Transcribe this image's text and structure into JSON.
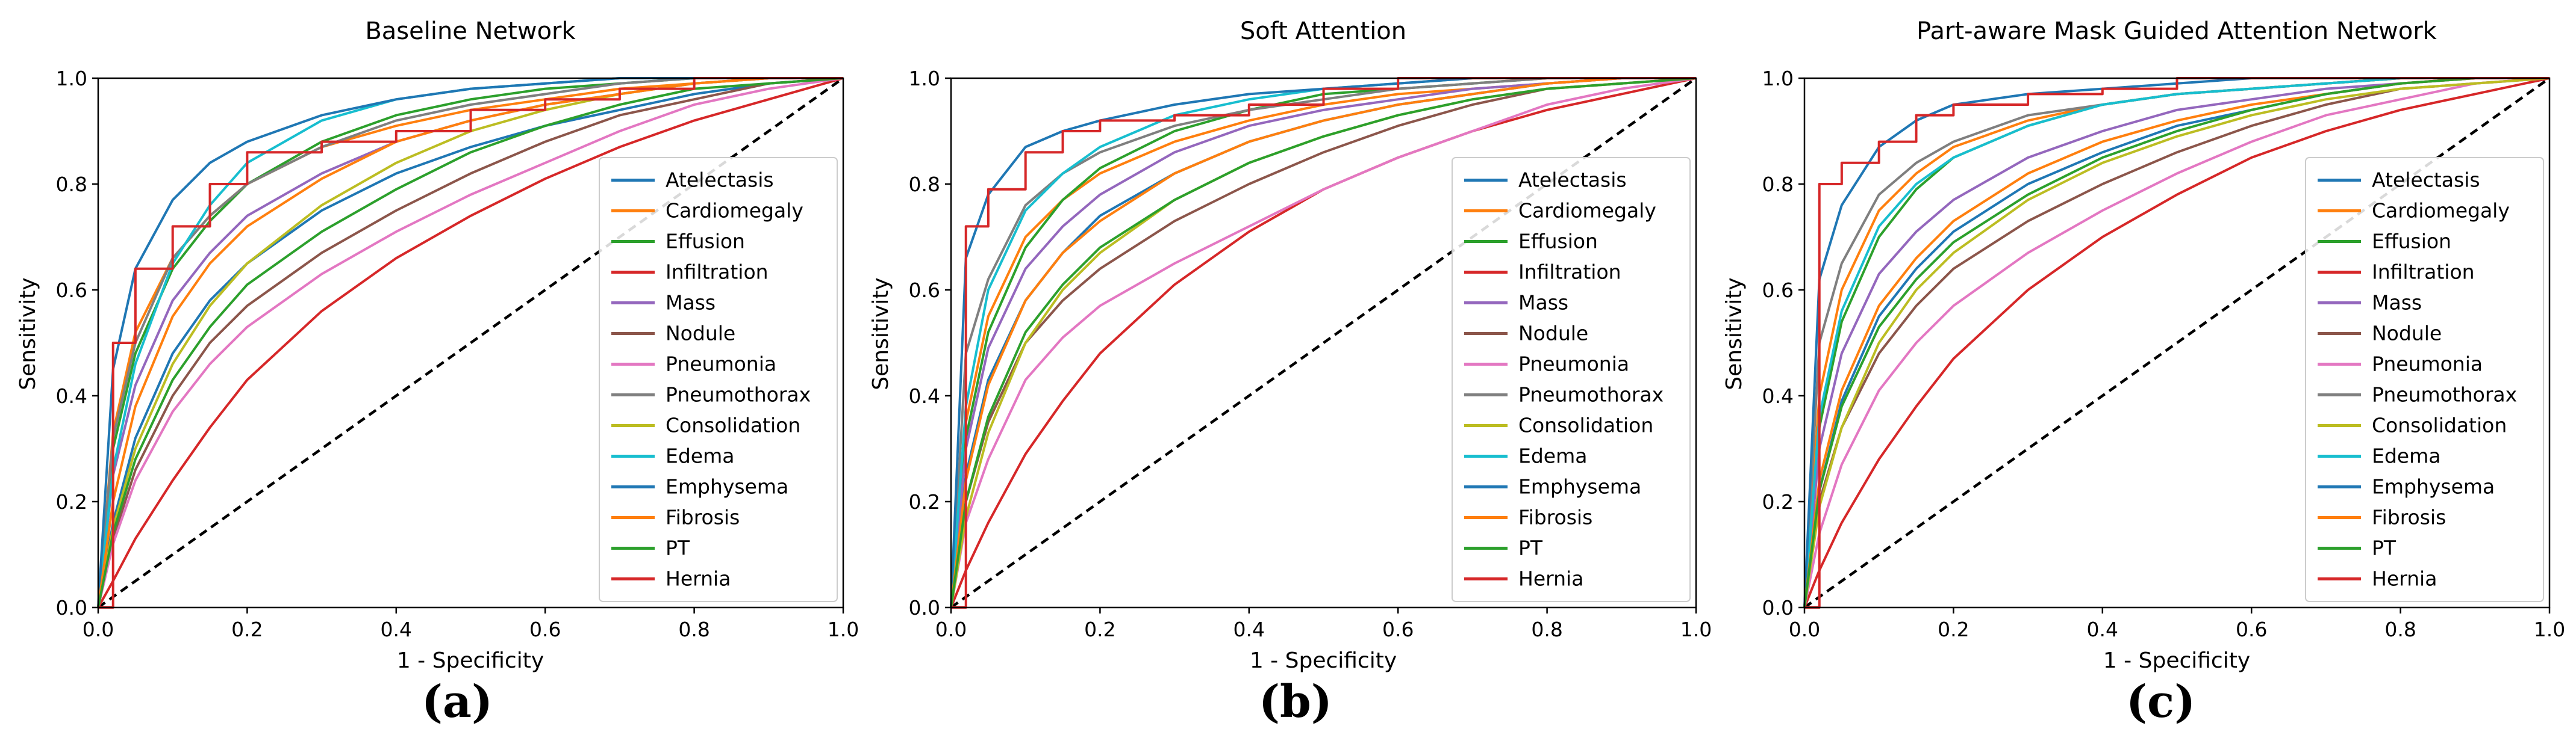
{
  "panel_letters": [
    "(a)",
    "(b)",
    "(c)"
  ],
  "chart_data": [
    {
      "type": "line",
      "title": "Baseline Network",
      "xlabel": "1 - Specificity",
      "ylabel": "Sensitivity",
      "xlim": [
        0,
        1
      ],
      "ylim": [
        0,
        1
      ],
      "xticks": [
        "0.0",
        "0.2",
        "0.4",
        "0.6",
        "0.8",
        "1.0"
      ],
      "yticks": [
        "0.0",
        "0.2",
        "0.4",
        "0.6",
        "0.8",
        "1.0"
      ],
      "grid": false,
      "legend_position": "lower-right",
      "x": [
        0,
        0.02,
        0.05,
        0.1,
        0.15,
        0.2,
        0.3,
        0.4,
        0.5,
        0.6,
        0.7,
        0.8,
        0.9,
        1.0
      ],
      "series": [
        {
          "name": "Atelectasis",
          "color": "#1f77b4",
          "values": [
            0,
            0.16,
            0.32,
            0.48,
            0.58,
            0.65,
            0.75,
            0.82,
            0.87,
            0.91,
            0.94,
            0.97,
            0.99,
            1.0
          ]
        },
        {
          "name": "Cardiomegaly",
          "color": "#ff7f0e",
          "values": [
            0,
            0.33,
            0.52,
            0.66,
            0.74,
            0.8,
            0.87,
            0.91,
            0.94,
            0.96,
            0.98,
            0.99,
            1.0,
            1.0
          ]
        },
        {
          "name": "Effusion",
          "color": "#2ca02c",
          "values": [
            0,
            0.3,
            0.48,
            0.64,
            0.73,
            0.8,
            0.88,
            0.93,
            0.96,
            0.98,
            0.99,
            1.0,
            1.0,
            1.0
          ]
        },
        {
          "name": "Infiltration",
          "color": "#d62728",
          "values": [
            0,
            0.05,
            0.13,
            0.24,
            0.34,
            0.43,
            0.56,
            0.66,
            0.74,
            0.81,
            0.87,
            0.92,
            0.96,
            1.0
          ]
        },
        {
          "name": "Mass",
          "color": "#9467bd",
          "values": [
            0,
            0.25,
            0.42,
            0.58,
            0.67,
            0.74,
            0.82,
            0.88,
            0.92,
            0.95,
            0.97,
            0.99,
            1.0,
            1.0
          ]
        },
        {
          "name": "Nodule",
          "color": "#8c564b",
          "values": [
            0,
            0.13,
            0.26,
            0.4,
            0.5,
            0.57,
            0.67,
            0.75,
            0.82,
            0.88,
            0.93,
            0.96,
            0.99,
            1.0
          ]
        },
        {
          "name": "Pneumonia",
          "color": "#e377c2",
          "values": [
            0,
            0.12,
            0.24,
            0.37,
            0.46,
            0.53,
            0.63,
            0.71,
            0.78,
            0.84,
            0.9,
            0.95,
            0.98,
            1.0
          ]
        },
        {
          "name": "Pneumothorax",
          "color": "#7f7f7f",
          "values": [
            0,
            0.32,
            0.5,
            0.66,
            0.74,
            0.8,
            0.87,
            0.92,
            0.95,
            0.97,
            0.99,
            1.0,
            1.0,
            1.0
          ]
        },
        {
          "name": "Consolidation",
          "color": "#bcbd22",
          "values": [
            0,
            0.15,
            0.3,
            0.46,
            0.57,
            0.65,
            0.76,
            0.84,
            0.9,
            0.94,
            0.97,
            0.99,
            1.0,
            1.0
          ]
        },
        {
          "name": "Edema",
          "color": "#17becf",
          "values": [
            0,
            0.26,
            0.46,
            0.65,
            0.76,
            0.84,
            0.92,
            0.96,
            0.98,
            0.99,
            1.0,
            1.0,
            1.0,
            1.0
          ]
        },
        {
          "name": "Emphysema",
          "color": "#1f77b4",
          "values": [
            0,
            0.45,
            0.64,
            0.77,
            0.84,
            0.88,
            0.93,
            0.96,
            0.98,
            0.99,
            1.0,
            1.0,
            1.0,
            1.0
          ]
        },
        {
          "name": "Fibrosis",
          "color": "#ff7f0e",
          "values": [
            0,
            0.2,
            0.38,
            0.55,
            0.65,
            0.72,
            0.81,
            0.88,
            0.92,
            0.95,
            0.97,
            0.99,
            1.0,
            1.0
          ]
        },
        {
          "name": "PT",
          "color": "#2ca02c",
          "values": [
            0,
            0.14,
            0.28,
            0.43,
            0.53,
            0.61,
            0.71,
            0.79,
            0.86,
            0.91,
            0.95,
            0.98,
            0.99,
            1.0
          ]
        },
        {
          "name": "Hernia",
          "color": "#d62728",
          "values": [
            0,
            0.5,
            0.64,
            0.72,
            0.8,
            0.86,
            0.88,
            0.9,
            0.94,
            0.96,
            0.98,
            1.0,
            1.0,
            1.0
          ]
        }
      ]
    },
    {
      "type": "line",
      "title": "Soft Attention",
      "xlabel": "1 - Specificity",
      "ylabel": "Sensitivity",
      "xlim": [
        0,
        1
      ],
      "ylim": [
        0,
        1
      ],
      "xticks": [
        "0.0",
        "0.2",
        "0.4",
        "0.6",
        "0.8",
        "1.0"
      ],
      "yticks": [
        "0.0",
        "0.2",
        "0.4",
        "0.6",
        "0.8",
        "1.0"
      ],
      "grid": false,
      "legend_position": "lower-right",
      "x": [
        0,
        0.02,
        0.05,
        0.1,
        0.15,
        0.2,
        0.3,
        0.4,
        0.5,
        0.6,
        0.7,
        0.8,
        0.9,
        1.0
      ],
      "series": [
        {
          "name": "Atelectasis",
          "color": "#1f77b4",
          "values": [
            0,
            0.25,
            0.43,
            0.58,
            0.67,
            0.74,
            0.82,
            0.88,
            0.92,
            0.95,
            0.97,
            0.99,
            1.0,
            1.0
          ]
        },
        {
          "name": "Cardiomegaly",
          "color": "#ff7f0e",
          "values": [
            0,
            0.35,
            0.55,
            0.7,
            0.77,
            0.82,
            0.88,
            0.92,
            0.95,
            0.97,
            0.98,
            0.99,
            1.0,
            1.0
          ]
        },
        {
          "name": "Effusion",
          "color": "#2ca02c",
          "values": [
            0,
            0.32,
            0.52,
            0.68,
            0.77,
            0.83,
            0.9,
            0.94,
            0.97,
            0.98,
            0.99,
            1.0,
            1.0,
            1.0
          ]
        },
        {
          "name": "Infiltration",
          "color": "#d62728",
          "values": [
            0,
            0.07,
            0.16,
            0.29,
            0.39,
            0.48,
            0.61,
            0.71,
            0.79,
            0.85,
            0.9,
            0.94,
            0.97,
            1.0
          ]
        },
        {
          "name": "Mass",
          "color": "#9467bd",
          "values": [
            0,
            0.3,
            0.49,
            0.64,
            0.72,
            0.78,
            0.86,
            0.91,
            0.94,
            0.96,
            0.98,
            0.99,
            1.0,
            1.0
          ]
        },
        {
          "name": "Nodule",
          "color": "#8c564b",
          "values": [
            0,
            0.2,
            0.35,
            0.5,
            0.58,
            0.64,
            0.73,
            0.8,
            0.86,
            0.91,
            0.95,
            0.98,
            0.99,
            1.0
          ]
        },
        {
          "name": "Pneumonia",
          "color": "#e377c2",
          "values": [
            0,
            0.16,
            0.28,
            0.43,
            0.51,
            0.57,
            0.65,
            0.72,
            0.79,
            0.85,
            0.9,
            0.95,
            0.98,
            1.0
          ]
        },
        {
          "name": "Pneumothorax",
          "color": "#7f7f7f",
          "values": [
            0,
            0.48,
            0.62,
            0.76,
            0.82,
            0.86,
            0.91,
            0.94,
            0.96,
            0.98,
            0.99,
            1.0,
            1.0,
            1.0
          ]
        },
        {
          "name": "Consolidation",
          "color": "#bcbd22",
          "values": [
            0,
            0.17,
            0.33,
            0.5,
            0.6,
            0.67,
            0.77,
            0.84,
            0.89,
            0.93,
            0.96,
            0.98,
            0.99,
            1.0
          ]
        },
        {
          "name": "Edema",
          "color": "#17becf",
          "values": [
            0,
            0.38,
            0.6,
            0.75,
            0.82,
            0.87,
            0.93,
            0.96,
            0.98,
            0.99,
            1.0,
            1.0,
            1.0,
            1.0
          ]
        },
        {
          "name": "Emphysema",
          "color": "#1f77b4",
          "values": [
            0,
            0.66,
            0.78,
            0.87,
            0.9,
            0.92,
            0.95,
            0.97,
            0.98,
            0.99,
            1.0,
            1.0,
            1.0,
            1.0
          ]
        },
        {
          "name": "Fibrosis",
          "color": "#ff7f0e",
          "values": [
            0,
            0.24,
            0.42,
            0.58,
            0.67,
            0.73,
            0.82,
            0.88,
            0.92,
            0.95,
            0.97,
            0.99,
            1.0,
            1.0
          ]
        },
        {
          "name": "PT",
          "color": "#2ca02c",
          "values": [
            0,
            0.2,
            0.36,
            0.52,
            0.61,
            0.68,
            0.77,
            0.84,
            0.89,
            0.93,
            0.96,
            0.98,
            0.99,
            1.0
          ]
        },
        {
          "name": "Hernia",
          "color": "#d62728",
          "values": [
            0,
            0.72,
            0.79,
            0.86,
            0.9,
            0.92,
            0.93,
            0.95,
            0.98,
            1.0,
            1.0,
            1.0,
            1.0,
            1.0
          ]
        }
      ]
    },
    {
      "type": "line",
      "title": "Part-aware Mask Guided Attention Network",
      "xlabel": "1 - Specificity",
      "ylabel": "Sensitivity",
      "xlim": [
        0,
        1
      ],
      "ylim": [
        0,
        1
      ],
      "xticks": [
        "0.0",
        "0.2",
        "0.4",
        "0.6",
        "0.8",
        "1.0"
      ],
      "yticks": [
        "0.0",
        "0.2",
        "0.4",
        "0.6",
        "0.8",
        "1.0"
      ],
      "grid": false,
      "legend_position": "lower-right",
      "x": [
        0,
        0.02,
        0.05,
        0.1,
        0.15,
        0.2,
        0.3,
        0.4,
        0.5,
        0.6,
        0.7,
        0.8,
        0.9,
        1.0
      ],
      "series": [
        {
          "name": "Atelectasis",
          "color": "#1f77b4",
          "values": [
            0,
            0.22,
            0.39,
            0.55,
            0.64,
            0.71,
            0.8,
            0.86,
            0.91,
            0.94,
            0.97,
            0.99,
            1.0,
            1.0
          ]
        },
        {
          "name": "Cardiomegaly",
          "color": "#ff7f0e",
          "values": [
            0,
            0.4,
            0.6,
            0.75,
            0.82,
            0.87,
            0.92,
            0.95,
            0.97,
            0.98,
            0.99,
            1.0,
            1.0,
            1.0
          ]
        },
        {
          "name": "Effusion",
          "color": "#2ca02c",
          "values": [
            0,
            0.34,
            0.54,
            0.7,
            0.79,
            0.85,
            0.91,
            0.95,
            0.97,
            0.98,
            0.99,
            1.0,
            1.0,
            1.0
          ]
        },
        {
          "name": "Infiltration",
          "color": "#d62728",
          "values": [
            0,
            0.07,
            0.16,
            0.28,
            0.38,
            0.47,
            0.6,
            0.7,
            0.78,
            0.85,
            0.9,
            0.94,
            0.97,
            1.0
          ]
        },
        {
          "name": "Mass",
          "color": "#9467bd",
          "values": [
            0,
            0.3,
            0.48,
            0.63,
            0.71,
            0.77,
            0.85,
            0.9,
            0.94,
            0.96,
            0.98,
            0.99,
            1.0,
            1.0
          ]
        },
        {
          "name": "Nodule",
          "color": "#8c564b",
          "values": [
            0,
            0.2,
            0.34,
            0.48,
            0.57,
            0.64,
            0.73,
            0.8,
            0.86,
            0.91,
            0.95,
            0.98,
            0.99,
            1.0
          ]
        },
        {
          "name": "Pneumonia",
          "color": "#e377c2",
          "values": [
            0,
            0.14,
            0.27,
            0.41,
            0.5,
            0.57,
            0.67,
            0.75,
            0.82,
            0.88,
            0.93,
            0.96,
            0.99,
            1.0
          ]
        },
        {
          "name": "Pneumothorax",
          "color": "#7f7f7f",
          "values": [
            0,
            0.5,
            0.65,
            0.78,
            0.84,
            0.88,
            0.93,
            0.95,
            0.97,
            0.98,
            0.99,
            1.0,
            1.0,
            1.0
          ]
        },
        {
          "name": "Consolidation",
          "color": "#bcbd22",
          "values": [
            0,
            0.19,
            0.34,
            0.5,
            0.6,
            0.67,
            0.77,
            0.84,
            0.89,
            0.93,
            0.96,
            0.98,
            0.99,
            1.0
          ]
        },
        {
          "name": "Edema",
          "color": "#17becf",
          "values": [
            0,
            0.36,
            0.56,
            0.72,
            0.8,
            0.85,
            0.91,
            0.95,
            0.97,
            0.98,
            0.99,
            1.0,
            1.0,
            1.0
          ]
        },
        {
          "name": "Emphysema",
          "color": "#1f77b4",
          "values": [
            0,
            0.62,
            0.76,
            0.87,
            0.92,
            0.95,
            0.97,
            0.98,
            0.99,
            1.0,
            1.0,
            1.0,
            1.0,
            1.0
          ]
        },
        {
          "name": "Fibrosis",
          "color": "#ff7f0e",
          "values": [
            0,
            0.24,
            0.41,
            0.57,
            0.66,
            0.73,
            0.82,
            0.88,
            0.92,
            0.95,
            0.97,
            0.99,
            1.0,
            1.0
          ]
        },
        {
          "name": "PT",
          "color": "#2ca02c",
          "values": [
            0,
            0.22,
            0.38,
            0.53,
            0.62,
            0.69,
            0.78,
            0.85,
            0.9,
            0.94,
            0.97,
            0.99,
            1.0,
            1.0
          ]
        },
        {
          "name": "Hernia",
          "color": "#d62728",
          "values": [
            0,
            0.8,
            0.84,
            0.88,
            0.93,
            0.95,
            0.97,
            0.98,
            1.0,
            1.0,
            1.0,
            1.0,
            1.0,
            1.0
          ]
        }
      ]
    }
  ]
}
